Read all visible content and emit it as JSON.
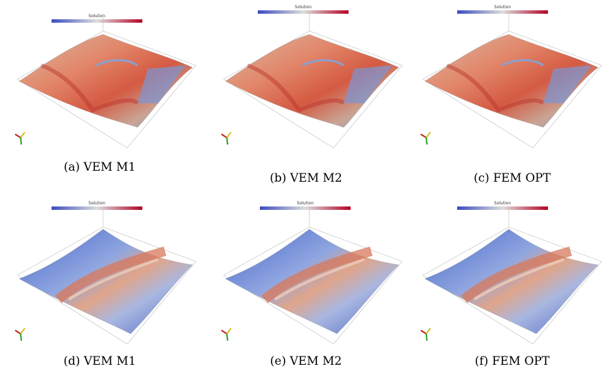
{
  "panels": [
    {
      "caption": "(a) VEM M1",
      "colorbar_title": "Solution"
    },
    {
      "caption": "(b) VEM M2",
      "colorbar_title": "Solution"
    },
    {
      "caption": "(c) FEM OPT",
      "colorbar_title": "Solution"
    },
    {
      "caption": "(d) VEM M1",
      "colorbar_title": "Solution"
    },
    {
      "caption": "(e) VEM M2",
      "colorbar_title": "Solution"
    },
    {
      "caption": "(f) FEM OPT",
      "colorbar_title": "Solution"
    }
  ]
}
